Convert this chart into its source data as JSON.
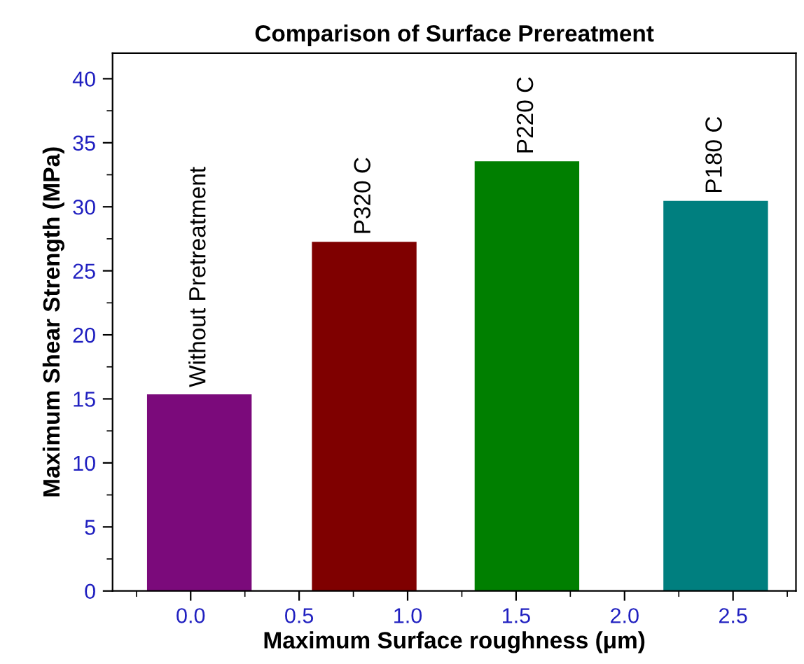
{
  "chart_data": {
    "type": "bar",
    "title": "Comparison of Surface Prereatment",
    "xlabel": "Maximum Surface roughness (μm)",
    "ylabel": "Maximum Shear Strength (MPa)",
    "x": [
      0.04,
      0.8,
      1.55,
      2.42
    ],
    "values": [
      15.3,
      27.2,
      33.5,
      30.4
    ],
    "colors": [
      "#7b0a7b",
      "#7f0000",
      "#007f00",
      "#007f7f"
    ],
    "annotations": [
      {
        "text": "Without Pretreatment",
        "x": 0.04,
        "y": 15.3
      },
      {
        "text": "P320 C",
        "x": 0.8,
        "y": 27.2
      },
      {
        "text": "P220 C",
        "x": 1.55,
        "y": 33.5
      },
      {
        "text": "P180 C",
        "x": 2.42,
        "y": 30.4
      }
    ],
    "xlim": [
      -0.36,
      2.79
    ],
    "ylim": [
      0,
      42
    ],
    "xticks": [
      {
        "value": 0,
        "label": "0.0"
      },
      {
        "value": 0.5,
        "label": "0.5"
      },
      {
        "value": 1,
        "label": "1.0"
      },
      {
        "value": 1.5,
        "label": "1.5"
      },
      {
        "value": 2,
        "label": "2.0"
      },
      {
        "value": 2.5,
        "label": "2.5"
      }
    ],
    "yticks": [
      0,
      5,
      10,
      15,
      20,
      25,
      30,
      35,
      40
    ],
    "grid": false,
    "legend": false
  }
}
